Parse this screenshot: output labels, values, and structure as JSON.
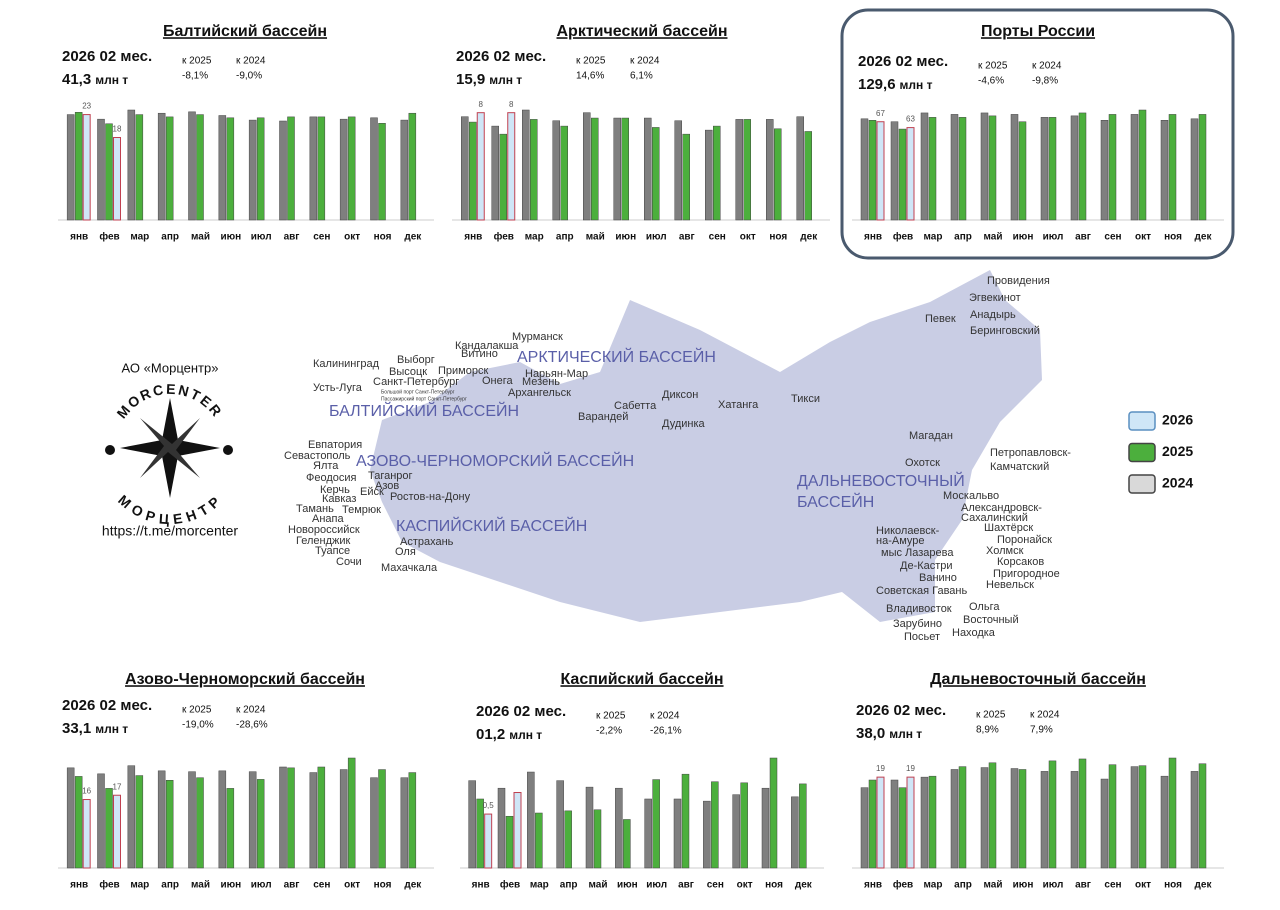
{
  "chart_data": [
    {
      "type": "bar",
      "title": "Балтийский бассейн",
      "period": "2026 02 мес.",
      "total": "41,3",
      "unit": "млн т",
      "compare": [
        {
          "label": "к 2025",
          "value": "-8,1%"
        },
        {
          "label": "к 2024",
          "value": "-9,0%"
        }
      ],
      "categories": [
        "янв",
        "фев",
        "мар",
        "апр",
        "май",
        "июн",
        "июл",
        "авг",
        "сен",
        "окт",
        "ноя",
        "дек"
      ],
      "series": [
        {
          "name": "2024",
          "color": "#7f7f7f",
          "values": [
            23,
            22,
            24,
            23.3,
            23.6,
            22.8,
            21.8,
            21.6,
            22.5,
            22,
            22.3,
            21.8
          ]
        },
        {
          "name": "2025",
          "color": "#4caf3d",
          "values": [
            23.5,
            21,
            23,
            22.5,
            23,
            22.3,
            22.3,
            22.5,
            22.5,
            22.5,
            21.1,
            23.3
          ]
        },
        {
          "name": "2026",
          "color": "#cfe6f7",
          "values": [
            23,
            18,
            null,
            null,
            null,
            null,
            null,
            null,
            null,
            null,
            null,
            null
          ]
        }
      ]
    },
    {
      "type": "bar",
      "title": "Арктический бассейн",
      "period": "2026 02 мес.",
      "total": "15,9",
      "unit": "млн т",
      "compare": [
        {
          "label": "к 2025",
          "value": "14,6%"
        },
        {
          "label": "к 2024",
          "value": "6,1%"
        }
      ],
      "categories": [
        "янв",
        "фев",
        "мар",
        "апр",
        "май",
        "июн",
        "июл",
        "авг",
        "сен",
        "окт",
        "ноя",
        "дек"
      ],
      "series": [
        {
          "name": "2024",
          "color": "#7f7f7f",
          "values": [
            7.7,
            7.0,
            8.2,
            7.4,
            8.0,
            7.6,
            7.6,
            7.4,
            6.7,
            7.5,
            7.5,
            7.7
          ]
        },
        {
          "name": "2025",
          "color": "#4caf3d",
          "values": [
            7.3,
            6.4,
            7.5,
            7.0,
            7.6,
            7.6,
            6.9,
            6.4,
            7.0,
            7.5,
            6.8,
            6.6
          ]
        },
        {
          "name": "2026",
          "color": "#cfe6f7",
          "values": [
            8,
            8,
            null,
            null,
            null,
            null,
            null,
            null,
            null,
            null,
            null,
            null
          ]
        }
      ]
    },
    {
      "type": "bar",
      "title": "Порты России",
      "period": "2026 02 мес.",
      "total": "129,6",
      "unit": "млн т",
      "compare": [
        {
          "label": "к 2025",
          "value": "-4,6%"
        },
        {
          "label": "к 2024",
          "value": "-9,8%"
        }
      ],
      "categories": [
        "янв",
        "фев",
        "мар",
        "апр",
        "май",
        "июн",
        "июл",
        "авг",
        "сен",
        "окт",
        "ноя",
        "дек"
      ],
      "series": [
        {
          "name": "2024",
          "color": "#7f7f7f",
          "values": [
            69,
            67,
            73,
            72,
            73,
            72,
            70,
            71,
            68,
            72,
            68,
            69
          ]
        },
        {
          "name": "2025",
          "color": "#4caf3d",
          "values": [
            68,
            62,
            70,
            70,
            71,
            67,
            70,
            73,
            72,
            75,
            72,
            72
          ]
        },
        {
          "name": "2026",
          "color": "#cfe6f7",
          "values": [
            67,
            63,
            null,
            null,
            null,
            null,
            null,
            null,
            null,
            null,
            null,
            null
          ]
        }
      ]
    },
    {
      "type": "bar",
      "title": "Азово-Черноморский бассейн",
      "period": "2026 02 мес.",
      "total": "33,1",
      "unit": "млн т",
      "compare": [
        {
          "label": "к 2025",
          "value": "-19,0%"
        },
        {
          "label": "к 2024",
          "value": "-28,6%"
        }
      ],
      "categories": [
        "янв",
        "фев",
        "мар",
        "апр",
        "май",
        "июн",
        "июл",
        "авг",
        "сен",
        "окт",
        "ноя",
        "дек"
      ],
      "series": [
        {
          "name": "2024",
          "color": "#7f7f7f",
          "values": [
            23.4,
            22,
            23.9,
            22.7,
            22.5,
            22.7,
            22.5,
            23.6,
            22.3,
            23,
            21.1,
            21.1
          ]
        },
        {
          "name": "2025",
          "color": "#4caf3d",
          "values": [
            21.4,
            18.6,
            21.6,
            20.5,
            21.1,
            18.6,
            20.7,
            23.4,
            23.6,
            25.7,
            23,
            22.3
          ]
        },
        {
          "name": "2026",
          "color": "#cfe6f7",
          "values": [
            16,
            17,
            null,
            null,
            null,
            null,
            null,
            null,
            null,
            null,
            null,
            null
          ]
        }
      ]
    },
    {
      "type": "bar",
      "title": "Каспийский бассейн",
      "period": "2026 02 мес.",
      "total": "01,2",
      "unit": "млн т",
      "compare": [
        {
          "label": "к 2025",
          "value": "-2,2%"
        },
        {
          "label": "к 2024",
          "value": "-26,1%"
        }
      ],
      "categories": [
        "янв",
        "фев",
        "мар",
        "апр",
        "май",
        "июн",
        "июл",
        "авг",
        "сен",
        "окт",
        "ноя",
        "дек"
      ],
      "series": [
        {
          "name": "2024",
          "color": "#7f7f7f",
          "values": [
            0.81,
            0.74,
            0.89,
            0.81,
            0.75,
            0.74,
            0.64,
            0.64,
            0.62,
            0.68,
            0.74,
            0.66
          ]
        },
        {
          "name": "2025",
          "color": "#4caf3d",
          "values": [
            0.64,
            0.48,
            0.51,
            0.53,
            0.54,
            0.45,
            0.82,
            0.87,
            0.8,
            0.79,
            1.02,
            0.78
          ]
        },
        {
          "name": "2026",
          "color": "#cfe6f7",
          "values": [
            0.5,
            0.7,
            null,
            null,
            null,
            null,
            null,
            null,
            null,
            null,
            null,
            null
          ],
          "value_labels": [
            "0,5",
            null,
            null,
            null,
            null,
            null,
            null,
            null,
            null,
            null,
            null,
            null
          ]
        }
      ]
    },
    {
      "type": "bar",
      "title": "Дальневосточный бассейн",
      "period": "2026 02 мес.",
      "total": "38,0",
      "unit": "млн т",
      "compare": [
        {
          "label": "к 2025",
          "value": "8,9%"
        },
        {
          "label": "к 2024",
          "value": "7,9%"
        }
      ],
      "categories": [
        "янв",
        "фев",
        "мар",
        "апр",
        "май",
        "июн",
        "июл",
        "авг",
        "сен",
        "окт",
        "ноя",
        "дек"
      ],
      "series": [
        {
          "name": "2024",
          "color": "#7f7f7f",
          "values": [
            16.8,
            18.4,
            19,
            20.6,
            21,
            20.8,
            20.2,
            20.2,
            18.6,
            21.2,
            19.2,
            20.2
          ]
        },
        {
          "name": "2025",
          "color": "#4caf3d",
          "values": [
            18.4,
            16.8,
            19.2,
            21.2,
            22,
            20.6,
            22.4,
            22.8,
            21.6,
            21.4,
            23,
            21.8
          ]
        },
        {
          "name": "2026",
          "color": "#cfe6f7",
          "values": [
            19,
            19,
            null,
            null,
            null,
            null,
            null,
            null,
            null,
            null,
            null,
            null
          ]
        }
      ]
    }
  ],
  "brand": {
    "company": "АО «Морцентр»",
    "latin": "MORCENTER",
    "cyrillic": "МОРЦЕНТР",
    "url": "https://t.me/morcenter"
  },
  "map": {
    "basins": [
      "АРКТИЧЕСКИЙ БАССЕЙН",
      "БАЛТИЙСКИЙ БАССЕЙН",
      "АЗОВО-ЧЕРНОМОРСКИЙ БАССЕЙН",
      "КАСПИЙСКИЙ БАССЕЙН",
      "ДАЛЬНЕВОСТОЧНЫЙ",
      "БАССЕЙН"
    ],
    "ports": [
      "Провидения",
      "Эгвекинот",
      "Анадырь",
      "Беринговский",
      "Певек",
      "Мурманск",
      "Кандалакша",
      "Витино",
      "Калининград",
      "Выборг",
      "Высоцк",
      "Приморск",
      "Санкт-Петербург",
      "Большой порт Санкт-Петербург",
      "Пассажирский порт Санкт-Петербург",
      "Усть-Луга",
      "Онега",
      "Нарьян-Мар",
      "Мезень",
      "Архангельск",
      "Сабетта",
      "Варандей",
      "Диксон",
      "Хатанга",
      "Тикси",
      "Дудинка",
      "Евпатория",
      "Севастополь",
      "Ялта",
      "Феодосия",
      "Керчь",
      "Кавказ",
      "Таганрог",
      "Азов",
      "Ейск",
      "Ростов-на-Дону",
      "Темрюк",
      "Тамань",
      "Анапа",
      "Новороссийск",
      "Геленджик",
      "Туапсе",
      "Сочи",
      "Астрахань",
      "Оля",
      "Махачкала",
      "Магадан",
      "Охотск",
      "Петропавловск-",
      "Камчатский",
      "Москальво",
      "Александровск-",
      "Сахалинский",
      "Шахтёрск",
      "Поронайск",
      "Холмск",
      "Корсаков",
      "Пригородное",
      "Невельск",
      "Николаевск-",
      "на-Амуре",
      "мыс Лазарева",
      "Де-Кастри",
      "Ванино",
      "Советская Гавань",
      "Владивосток",
      "Ольга",
      "Восточный",
      "Зарубино",
      "Находка",
      "Посьет"
    ]
  }
}
